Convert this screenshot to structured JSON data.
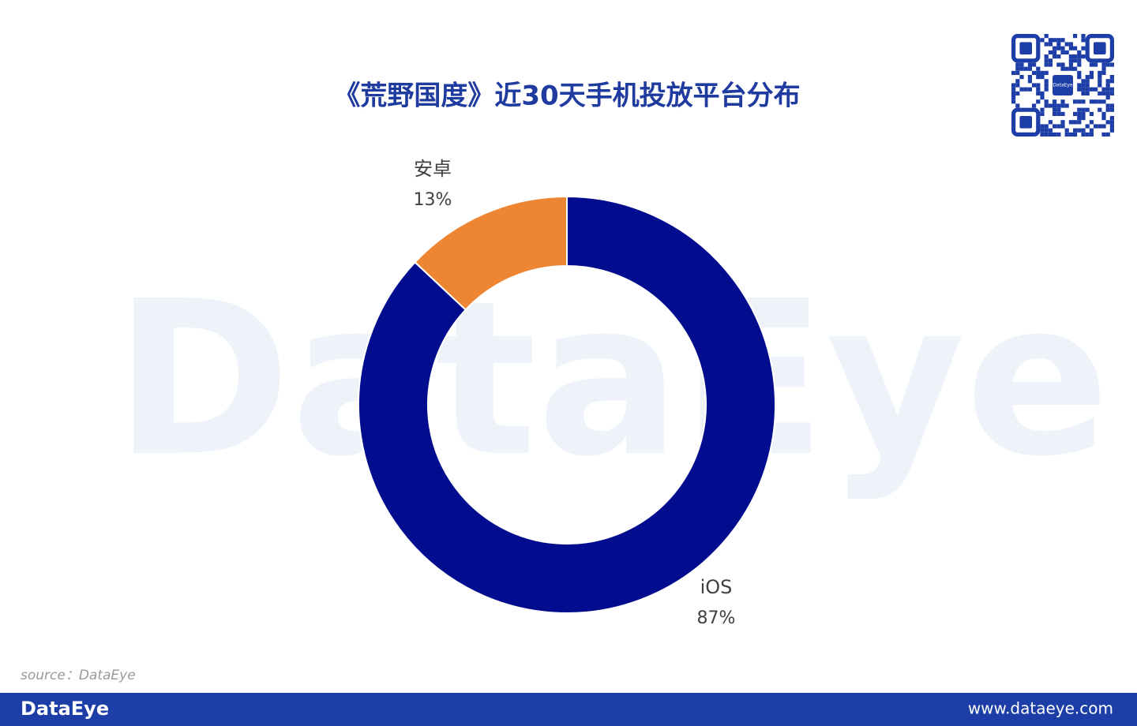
{
  "chart_data": {
    "type": "pie",
    "donut": true,
    "title": "《荒野国度》近30天手机投放平台分布",
    "categories": [
      "iOS",
      "安卓"
    ],
    "values": [
      87,
      13
    ],
    "value_labels": [
      "87%",
      "13%"
    ],
    "colors": [
      "#020c8e",
      "#ed8532"
    ]
  },
  "watermark": "DataEye",
  "source": "source：DataEye",
  "footer": {
    "brand": "DataEye",
    "url": "www.dataeye.com"
  },
  "qr_label": "DataEye"
}
